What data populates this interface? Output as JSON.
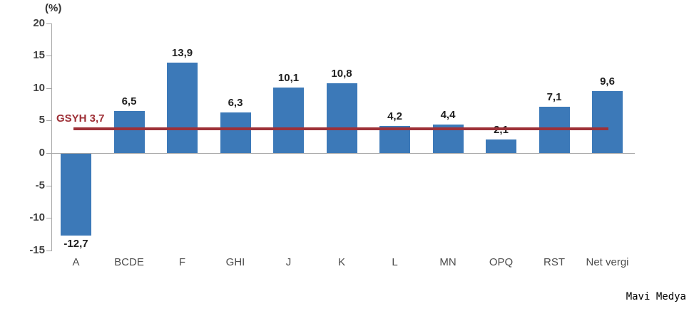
{
  "chart_data": {
    "type": "bar",
    "title": "",
    "unit_label": "(%)",
    "categories": [
      "A",
      "BCDE",
      "F",
      "GHI",
      "J",
      "K",
      "L",
      "MN",
      "OPQ",
      "RST",
      "Net vergi"
    ],
    "values": [
      -12.7,
      6.5,
      13.9,
      6.3,
      10.1,
      10.8,
      4.2,
      4.4,
      2.1,
      7.1,
      9.6
    ],
    "value_labels": [
      "-12,7",
      "6,5",
      "13,9",
      "6,3",
      "10,1",
      "10,8",
      "4,2",
      "4,4",
      "2,1",
      "7,1",
      "9,6"
    ],
    "xlabel": "",
    "ylabel": "(%)",
    "ylim": [
      -15,
      20
    ],
    "ytick_labels": [
      "20",
      "15",
      "10",
      "5",
      "0",
      "-5",
      "-10",
      "-15"
    ],
    "ytick_values": [
      20,
      15,
      10,
      5,
      0,
      -5,
      -10,
      -15
    ],
    "grid": false,
    "legend_position": "none",
    "bar_color": "#3c79b8",
    "axis_color": "#a6a6a6",
    "reference_line": {
      "label": "GSYH 3,7",
      "value": 3.7,
      "color": "#9e3138"
    }
  },
  "watermark": {
    "text": "Mavi Medya"
  }
}
